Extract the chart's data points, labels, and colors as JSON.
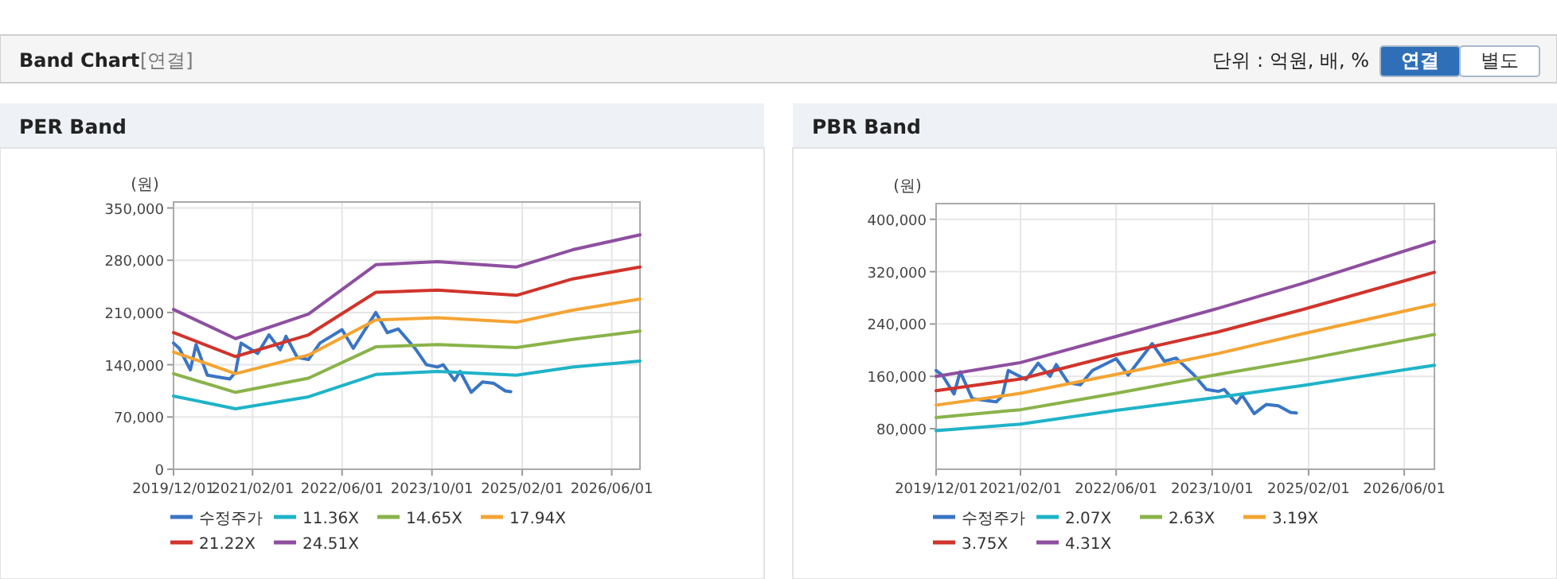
{
  "chart_data": [
    {
      "type": "line",
      "title": "PER Band",
      "ylabel": "(원)",
      "annotations": [
        "Band Chart",
        "[연결]",
        "단위 : 억원, 배, %",
        "연결",
        "별도"
      ],
      "xlim": [
        "2019-12-01",
        "2026-11-01"
      ],
      "xticks": [
        {
          "value": "2019-12-01",
          "label": "2019/12/01"
        },
        {
          "value": "2021-02-01",
          "label": "2021/02/01"
        },
        {
          "value": "2022-06-01",
          "label": "2022/06/01"
        },
        {
          "value": "2023-10-01",
          "label": "2023/10/01"
        },
        {
          "value": "2025-02-01",
          "label": "2025/02/01"
        },
        {
          "value": "2026-06-01",
          "label": "2026/06/01"
        }
      ],
      "ylim": [
        0,
        358000
      ],
      "yticks": [
        0,
        {
          "value": 70000,
          "label": "70,000"
        },
        {
          "value": 140000,
          "label": "140,000"
        },
        {
          "value": 210000,
          "label": "210,000"
        },
        {
          "value": 280000,
          "label": "280,000"
        },
        {
          "value": 350000,
          "label": "350,000"
        }
      ],
      "grid": true,
      "legend": "bottom",
      "series": [
        {
          "name": "수정주가",
          "color": "#3a75c4",
          "x": [
            "2019-12",
            "2020-01",
            "2020-03",
            "2020-04",
            "2020-06",
            "2020-10",
            "2020-11",
            "2020-12",
            "2021-03",
            "2021-05",
            "2021-07",
            "2021-08",
            "2021-10",
            "2021-12",
            "2022-02",
            "2022-06",
            "2022-08",
            "2022-12",
            "2023-02",
            "2023-04",
            "2023-07",
            "2023-09",
            "2023-11",
            "2023-12",
            "2024-02",
            "2024-03",
            "2024-05",
            "2024-07",
            "2024-09",
            "2024-11",
            "2024-12"
          ],
          "values": [
            169000,
            162000,
            133000,
            167000,
            126000,
            121000,
            130000,
            169000,
            155000,
            180000,
            160000,
            178000,
            150000,
            147000,
            169000,
            187000,
            162000,
            210000,
            183000,
            188000,
            162000,
            140000,
            137000,
            140000,
            119000,
            131000,
            103000,
            117000,
            115000,
            105000,
            104000
          ]
        },
        {
          "name": "11.36X",
          "color": "#1fb3c8",
          "x": [
            "2019-12",
            "2020-11",
            "2021-12",
            "2022-12",
            "2023-11",
            "2025-01",
            "2025-11",
            "2026-11"
          ],
          "values": [
            98000,
            81000,
            97000,
            127000,
            131000,
            126000,
            137000,
            145000
          ]
        },
        {
          "name": "14.65X",
          "color": "#8ab34a",
          "x": [
            "2019-12",
            "2020-11",
            "2021-12",
            "2022-12",
            "2023-11",
            "2025-01",
            "2025-11",
            "2026-11"
          ],
          "values": [
            128000,
            103000,
            122000,
            164000,
            167000,
            163000,
            174000,
            185000
          ]
        },
        {
          "name": "17.94X",
          "color": "#f4a432",
          "x": [
            "2019-12",
            "2020-11",
            "2021-12",
            "2022-12",
            "2023-11",
            "2025-01",
            "2025-11",
            "2026-11"
          ],
          "values": [
            157000,
            128000,
            153000,
            200000,
            203000,
            197000,
            213000,
            228000
          ]
        },
        {
          "name": "21.22X",
          "color": "#d0342c",
          "x": [
            "2019-12",
            "2020-11",
            "2021-12",
            "2022-12",
            "2023-11",
            "2025-01",
            "2025-11",
            "2026-11"
          ],
          "values": [
            183000,
            151000,
            180000,
            237000,
            240000,
            233000,
            255000,
            271000
          ]
        },
        {
          "name": "24.51X",
          "color": "#8e4fa0",
          "x": [
            "2019-12",
            "2020-11",
            "2021-12",
            "2022-12",
            "2023-11",
            "2025-01",
            "2025-11",
            "2026-11"
          ],
          "values": [
            214000,
            175000,
            208000,
            274000,
            278000,
            271000,
            294000,
            314000
          ]
        }
      ]
    },
    {
      "type": "line",
      "title": "PBR Band",
      "ylabel": "(원)",
      "xlim": [
        "2019-12-01",
        "2026-11-01"
      ],
      "xticks": [
        {
          "value": "2019-12-01",
          "label": "2019/12/01"
        },
        {
          "value": "2021-02-01",
          "label": "2021/02/01"
        },
        {
          "value": "2022-06-01",
          "label": "2022/06/01"
        },
        {
          "value": "2023-10-01",
          "label": "2023/10/01"
        },
        {
          "value": "2025-02-01",
          "label": "2025/02/01"
        },
        {
          "value": "2026-06-01",
          "label": "2026/06/01"
        }
      ],
      "ylim": [
        18000,
        424000
      ],
      "yticks": [
        {
          "value": 80000,
          "label": "80,000"
        },
        {
          "value": 160000,
          "label": "160,000"
        },
        {
          "value": 240000,
          "label": "240,000"
        },
        {
          "value": 320000,
          "label": "320,000"
        },
        {
          "value": 400000,
          "label": "400,000"
        }
      ],
      "grid": true,
      "legend": "bottom",
      "series": [
        {
          "name": "수정주가",
          "color": "#3a75c4",
          "x": [
            "2019-12",
            "2020-01",
            "2020-03",
            "2020-04",
            "2020-06",
            "2020-10",
            "2020-11",
            "2020-12",
            "2021-03",
            "2021-05",
            "2021-07",
            "2021-08",
            "2021-10",
            "2021-12",
            "2022-02",
            "2022-06",
            "2022-08",
            "2022-12",
            "2023-02",
            "2023-04",
            "2023-07",
            "2023-09",
            "2023-11",
            "2023-12",
            "2024-02",
            "2024-03",
            "2024-05",
            "2024-07",
            "2024-09",
            "2024-11",
            "2024-12"
          ],
          "values": [
            169000,
            162000,
            133000,
            167000,
            126000,
            121000,
            130000,
            169000,
            155000,
            180000,
            160000,
            178000,
            150000,
            147000,
            169000,
            187000,
            162000,
            210000,
            183000,
            188000,
            162000,
            140000,
            137000,
            140000,
            119000,
            131000,
            103000,
            117000,
            115000,
            105000,
            104000
          ]
        },
        {
          "name": "2.07X",
          "color": "#1fb3c8",
          "x": [
            "2019-12",
            "2021-02",
            "2022-06",
            "2023-11",
            "2025-01",
            "2026-11"
          ],
          "values": [
            77000,
            87000,
            108000,
            128000,
            146000,
            177000
          ]
        },
        {
          "name": "2.63X",
          "color": "#8ab34a",
          "x": [
            "2019-12",
            "2021-02",
            "2022-06",
            "2023-11",
            "2025-01",
            "2026-11"
          ],
          "values": [
            97000,
            109000,
            134000,
            163000,
            185000,
            224000
          ]
        },
        {
          "name": "3.19X",
          "color": "#f4a432",
          "x": [
            "2019-12",
            "2021-02",
            "2022-06",
            "2023-11",
            "2025-01",
            "2026-11"
          ],
          "values": [
            116000,
            134000,
            163000,
            195000,
            225000,
            270000
          ]
        },
        {
          "name": "3.75X",
          "color": "#d0342c",
          "x": [
            "2019-12",
            "2021-02",
            "2022-06",
            "2023-11",
            "2025-01",
            "2026-11"
          ],
          "values": [
            138000,
            156000,
            193000,
            228000,
            262000,
            319000
          ]
        },
        {
          "name": "4.31X",
          "color": "#8e4fa0",
          "x": [
            "2019-12",
            "2021-02",
            "2022-06",
            "2023-11",
            "2025-01",
            "2026-11"
          ],
          "values": [
            160000,
            181000,
            221000,
            264000,
            302000,
            366000
          ]
        }
      ]
    }
  ]
}
